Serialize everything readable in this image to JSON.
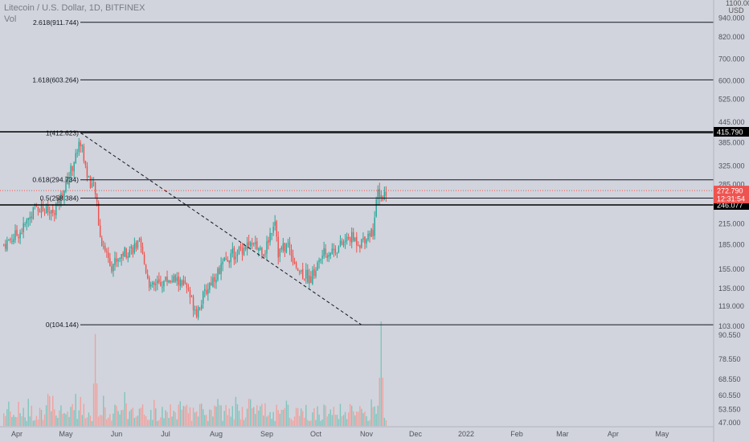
{
  "header": {
    "title": "Litecoin / U.S. Dollar, 1D, BITFINEX",
    "volume_label": "Vol",
    "axis_top_value": "1100.000",
    "currency": "USD"
  },
  "colors": {
    "background": "#d1d4dc",
    "up": "#26a69a",
    "down": "#ef5350",
    "vol_up": "#80c5be",
    "vol_down": "#f0a29f",
    "fib_line": "#131722",
    "current_price_tag": "#ef5350",
    "level_tag": "#000000"
  },
  "chart_data": {
    "type": "candlestick",
    "symbol": "Litecoin / U.S. Dollar",
    "interval": "1D",
    "exchange": "BITFINEX",
    "y_scale": "log",
    "ylim": [
      100,
      1100
    ],
    "y_ticks": [
      "940.000",
      "820.000",
      "700.000",
      "600.000",
      "525.000",
      "445.000",
      "385.000",
      "325.000",
      "285.000",
      "245.000",
      "215.000",
      "185.000",
      "155.000",
      "135.000",
      "119.000",
      "103.000"
    ],
    "volume_ticks": [
      "90.550",
      "78.550",
      "68.550",
      "60.550",
      "53.550",
      "47.000"
    ],
    "x_ticks": [
      "Apr",
      "May",
      "Jun",
      "Jul",
      "Aug",
      "Sep",
      "Oct",
      "Nov",
      "Dec",
      "2022",
      "Feb",
      "Mar",
      "Apr",
      "May"
    ],
    "fib_levels": [
      {
        "label": "2.618(911.744)",
        "value": 911.744
      },
      {
        "label": "1.618(603.264)",
        "value": 603.264
      },
      {
        "label": "1(412.623)",
        "value": 412.623
      },
      {
        "label": "0.618(294.734)",
        "value": 294.734
      },
      {
        "label": "0.5(258.384)",
        "value": 258.384
      },
      {
        "label": "0(104.144)",
        "value": 104.144
      }
    ],
    "horizontal_levels": [
      {
        "label": "415.790",
        "value": 415.79
      },
      {
        "label": "246.077",
        "value": 246.077
      }
    ],
    "current_price": {
      "label": "272.790",
      "value": 272.79,
      "countdown": "12:31:54"
    },
    "trendline": {
      "from": {
        "date": "2021-05-10",
        "price": 412.6
      },
      "to": {
        "date": "2021-10-29",
        "price": 104.1
      }
    },
    "price_path": [
      {
        "date": "2021-03-24",
        "price": 185
      },
      {
        "date": "2021-04-04",
        "price": 205
      },
      {
        "date": "2021-04-13",
        "price": 245
      },
      {
        "date": "2021-04-22",
        "price": 230
      },
      {
        "date": "2021-04-28",
        "price": 260
      },
      {
        "date": "2021-05-04",
        "price": 315
      },
      {
        "date": "2021-05-10",
        "price": 390
      },
      {
        "date": "2021-05-14",
        "price": 305
      },
      {
        "date": "2021-05-19",
        "price": 270
      },
      {
        "date": "2021-05-22",
        "price": 195
      },
      {
        "date": "2021-05-29",
        "price": 160
      },
      {
        "date": "2021-06-05",
        "price": 175
      },
      {
        "date": "2021-06-15",
        "price": 185
      },
      {
        "date": "2021-06-22",
        "price": 135
      },
      {
        "date": "2021-07-03",
        "price": 145
      },
      {
        "date": "2021-07-12",
        "price": 140
      },
      {
        "date": "2021-07-20",
        "price": 115
      },
      {
        "date": "2021-07-28",
        "price": 140
      },
      {
        "date": "2021-08-08",
        "price": 168
      },
      {
        "date": "2021-08-20",
        "price": 185
      },
      {
        "date": "2021-08-31",
        "price": 178
      },
      {
        "date": "2021-09-06",
        "price": 225
      },
      {
        "date": "2021-09-08",
        "price": 175
      },
      {
        "date": "2021-09-14",
        "price": 185
      },
      {
        "date": "2021-09-20",
        "price": 155
      },
      {
        "date": "2021-09-28",
        "price": 145
      },
      {
        "date": "2021-10-05",
        "price": 172
      },
      {
        "date": "2021-10-15",
        "price": 182
      },
      {
        "date": "2021-10-22",
        "price": 195
      },
      {
        "date": "2021-10-28",
        "price": 188
      },
      {
        "date": "2021-11-02",
        "price": 200
      },
      {
        "date": "2021-11-05",
        "price": 205
      },
      {
        "date": "2021-11-08",
        "price": 270
      },
      {
        "date": "2021-11-11",
        "price": 260
      },
      {
        "date": "2021-11-13",
        "price": 273
      }
    ],
    "volume_spikes": [
      {
        "date": "2021-05-19",
        "level": 0.88
      },
      {
        "date": "2021-11-10",
        "level": 1.0
      }
    ]
  }
}
